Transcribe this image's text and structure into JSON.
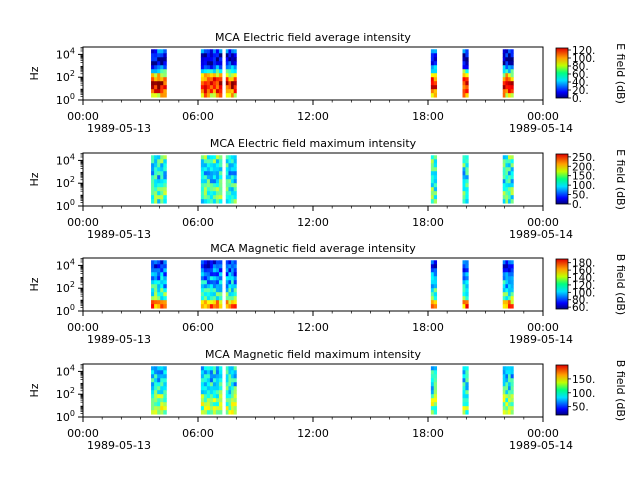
{
  "chart_data": [
    {
      "type": "heatmap",
      "title": "MCA  Electric field average intensity",
      "ylabel": "Hz",
      "y_scale": "log",
      "y_ticks": [
        {
          "base": "10",
          "exp": "0"
        },
        {
          "base": "10",
          "exp": "2"
        },
        {
          "base": "10",
          "exp": "4"
        }
      ],
      "x_ticks": [
        "00:00",
        "06:00",
        "12:00",
        "18:00",
        "00:00"
      ],
      "x_date_labels": [
        "1989-05-13",
        "1989-05-14"
      ],
      "colorbar_label": "E field (dB)",
      "colorbar_ticks": [
        "0.",
        "20.",
        "40.",
        "60.",
        "80.",
        "100.",
        "120."
      ],
      "colorbar_range": [
        0,
        125
      ],
      "data_intervals_hours": [
        [
          3.55,
          4.35
        ],
        [
          6.15,
          7.25
        ],
        [
          7.45,
          8.0
        ],
        [
          18.15,
          18.45
        ],
        [
          19.8,
          20.1
        ],
        [
          21.9,
          22.45
        ]
      ]
    },
    {
      "type": "heatmap",
      "title": "MCA  Electric field maximum intensity",
      "ylabel": "Hz",
      "y_scale": "log",
      "y_ticks": [
        {
          "base": "10",
          "exp": "0"
        },
        {
          "base": "10",
          "exp": "2"
        },
        {
          "base": "10",
          "exp": "4"
        }
      ],
      "x_ticks": [
        "00:00",
        "06:00",
        "12:00",
        "18:00",
        "00:00"
      ],
      "x_date_labels": [
        "1989-05-13",
        "1989-05-14"
      ],
      "colorbar_label": "E field (dB)",
      "colorbar_ticks": [
        "0.",
        "50.",
        "100.",
        "150.",
        "200.",
        "250."
      ],
      "colorbar_range": [
        0,
        265
      ],
      "data_intervals_hours": [
        [
          3.55,
          4.35
        ],
        [
          6.15,
          7.25
        ],
        [
          7.45,
          8.0
        ],
        [
          18.15,
          18.45
        ],
        [
          19.8,
          20.1
        ],
        [
          21.9,
          22.45
        ]
      ]
    },
    {
      "type": "heatmap",
      "title": "MCA  Magnetic field average intensity",
      "ylabel": "Hz",
      "y_scale": "log",
      "y_ticks": [
        {
          "base": "10",
          "exp": "0"
        },
        {
          "base": "10",
          "exp": "2"
        },
        {
          "base": "10",
          "exp": "4"
        }
      ],
      "x_ticks": [
        "00:00",
        "06:00",
        "12:00",
        "18:00",
        "00:00"
      ],
      "x_date_labels": [
        "1989-05-13",
        "1989-05-14"
      ],
      "colorbar_label": "B field (dB)",
      "colorbar_ticks": [
        "60.",
        "80.",
        "100.",
        "120.",
        "140.",
        "160.",
        "180."
      ],
      "colorbar_range": [
        55,
        190
      ],
      "data_intervals_hours": [
        [
          3.55,
          4.35
        ],
        [
          6.15,
          7.25
        ],
        [
          7.45,
          8.0
        ],
        [
          18.15,
          18.45
        ],
        [
          19.8,
          20.1
        ],
        [
          21.9,
          22.45
        ]
      ]
    },
    {
      "type": "heatmap",
      "title": "MCA  Magnetic field maximum intensity",
      "ylabel": "Hz",
      "y_scale": "log",
      "y_ticks": [
        {
          "base": "10",
          "exp": "0"
        },
        {
          "base": "10",
          "exp": "2"
        },
        {
          "base": "10",
          "exp": "4"
        }
      ],
      "x_ticks": [
        "00:00",
        "06:00",
        "12:00",
        "18:00",
        "00:00"
      ],
      "x_date_labels": [
        "1989-05-13",
        "1989-05-14"
      ],
      "colorbar_label": "B field (dB)",
      "colorbar_ticks": [
        "50.",
        "100.",
        "150."
      ],
      "colorbar_range": [
        20,
        200
      ],
      "data_intervals_hours": [
        [
          3.55,
          4.35
        ],
        [
          6.15,
          7.25
        ],
        [
          7.45,
          8.0
        ],
        [
          18.15,
          18.45
        ],
        [
          19.8,
          20.1
        ],
        [
          21.9,
          22.45
        ]
      ]
    }
  ]
}
